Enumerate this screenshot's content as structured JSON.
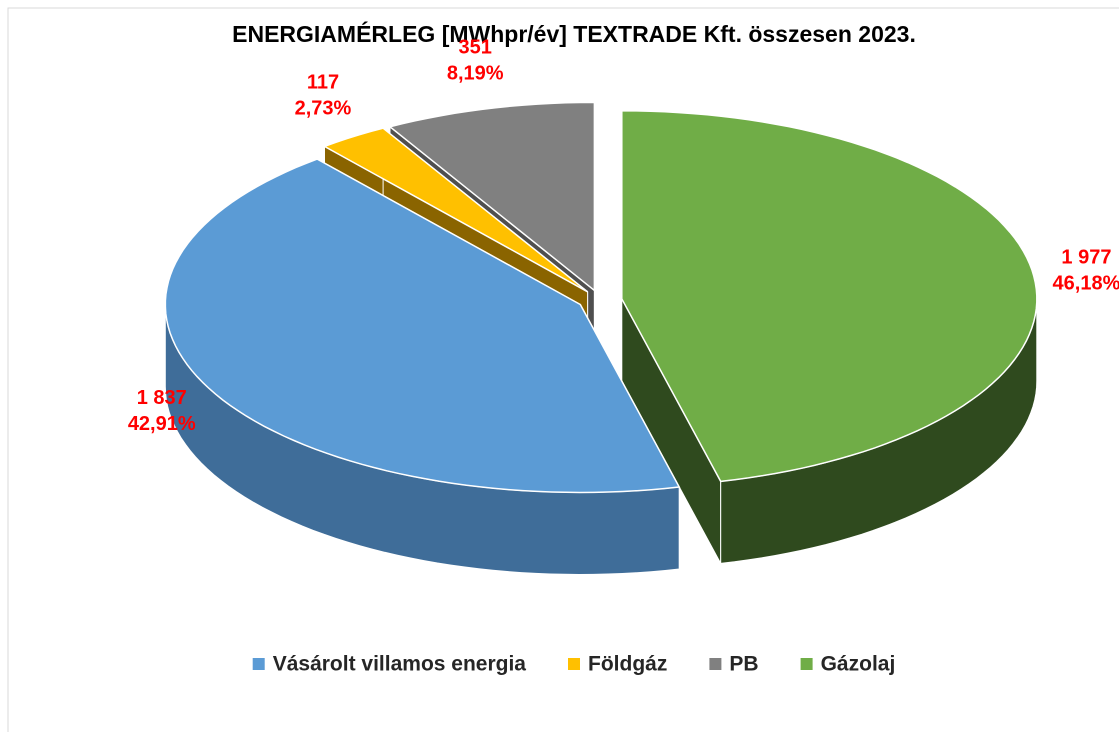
{
  "chart_data": {
    "type": "pie3d",
    "title": "ENERGIAMÉRLEG [MWhpr/év] TEXTRADE Kft. összesen 2023.",
    "categories": [
      "Vásárolt villamos energia",
      "Földgáz",
      "PB",
      "Gázolaj"
    ],
    "values": [
      1837,
      117,
      351,
      1977
    ],
    "value_labels": [
      "1 837",
      "117",
      "351",
      "1 977"
    ],
    "percents": [
      42.91,
      2.73,
      8.19,
      46.18
    ],
    "percent_labels": [
      "42,91%",
      "2,73%",
      "8,19%",
      "46,18%"
    ],
    "colors": [
      "#5b9bd5",
      "#ffc000",
      "#808080",
      "#70ad47"
    ],
    "side_colors": [
      "#3f6d99",
      "#8a6400",
      "#4f4f4f",
      "#2f4a1e"
    ],
    "legend": "bottom"
  }
}
